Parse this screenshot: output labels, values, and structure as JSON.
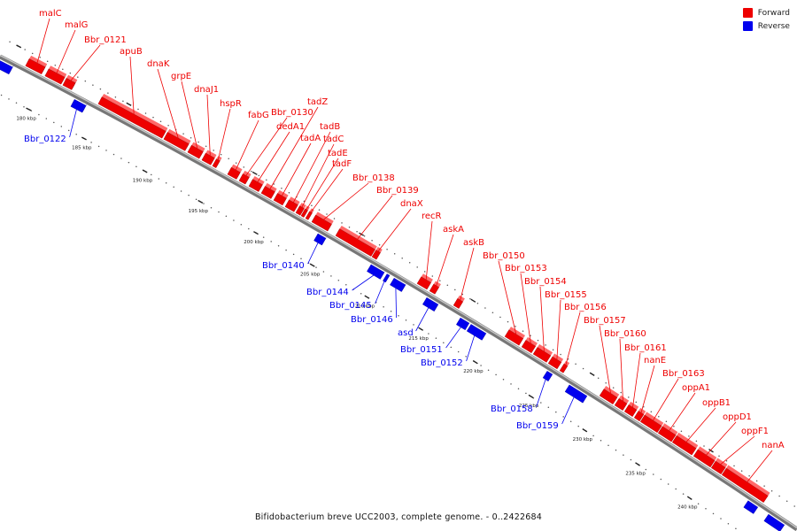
{
  "colors": {
    "forward": "#ee0000",
    "reverse": "#0000ee",
    "backbone": "#888888"
  },
  "legend": [
    {
      "label": "Forward",
      "color": "#ee0000"
    },
    {
      "label": "Reverse",
      "color": "#0000ee"
    }
  ],
  "footer": "Bifidobacterium breve UCC2003, complete genome. - 0..2422684",
  "scale": {
    "ticks": [
      "180 kbp",
      "185 kbp",
      "190 kbp",
      "195 kbp",
      "200 kbp",
      "205 kbp",
      "210 kbp",
      "215 kbp",
      "220 kbp",
      "225 kbp",
      "230 kbp",
      "235 kbp",
      "240 kbp"
    ]
  },
  "genes": [
    {
      "name": "malC",
      "strand": "forward"
    },
    {
      "name": "malG",
      "strand": "forward"
    },
    {
      "name": "Bbr_0121",
      "strand": "forward"
    },
    {
      "name": "apuB",
      "strand": "forward"
    },
    {
      "name": "dnaK",
      "strand": "forward"
    },
    {
      "name": "grpE",
      "strand": "forward"
    },
    {
      "name": "dnaJ1",
      "strand": "forward"
    },
    {
      "name": "hspR",
      "strand": "forward"
    },
    {
      "name": "fabG",
      "strand": "forward"
    },
    {
      "name": "Bbr_0130",
      "strand": "forward"
    },
    {
      "name": "dedA1",
      "strand": "forward"
    },
    {
      "name": "tadZ",
      "strand": "forward"
    },
    {
      "name": "tadA",
      "strand": "forward"
    },
    {
      "name": "tadB",
      "strand": "forward"
    },
    {
      "name": "tadC",
      "strand": "forward"
    },
    {
      "name": "tadE",
      "strand": "forward"
    },
    {
      "name": "tadF",
      "strand": "forward"
    },
    {
      "name": "Bbr_0138",
      "strand": "forward"
    },
    {
      "name": "Bbr_0139",
      "strand": "forward"
    },
    {
      "name": "dnaX",
      "strand": "forward"
    },
    {
      "name": "recR",
      "strand": "forward"
    },
    {
      "name": "askA",
      "strand": "forward"
    },
    {
      "name": "askB",
      "strand": "forward"
    },
    {
      "name": "Bbr_0150",
      "strand": "forward"
    },
    {
      "name": "Bbr_0153",
      "strand": "forward"
    },
    {
      "name": "Bbr_0154",
      "strand": "forward"
    },
    {
      "name": "Bbr_0155",
      "strand": "forward"
    },
    {
      "name": "Bbr_0156",
      "strand": "forward"
    },
    {
      "name": "Bbr_0157",
      "strand": "forward"
    },
    {
      "name": "Bbr_0160",
      "strand": "forward"
    },
    {
      "name": "Bbr_0161",
      "strand": "forward"
    },
    {
      "name": "nanE",
      "strand": "forward"
    },
    {
      "name": "Bbr_0163",
      "strand": "forward"
    },
    {
      "name": "oppA1",
      "strand": "forward"
    },
    {
      "name": "oppB1",
      "strand": "forward"
    },
    {
      "name": "oppD1",
      "strand": "forward"
    },
    {
      "name": "oppF1",
      "strand": "forward"
    },
    {
      "name": "nanA",
      "strand": "forward"
    },
    {
      "name": "Bbr_0122",
      "strand": "reverse"
    },
    {
      "name": "Bbr_0140",
      "strand": "reverse"
    },
    {
      "name": "Bbr_0144",
      "strand": "reverse"
    },
    {
      "name": "Bbr_0145",
      "strand": "reverse"
    },
    {
      "name": "Bbr_0146",
      "strand": "reverse"
    },
    {
      "name": "asd",
      "strand": "reverse"
    },
    {
      "name": "Bbr_0151",
      "strand": "reverse"
    },
    {
      "name": "Bbr_0152",
      "strand": "reverse"
    },
    {
      "name": "Bbr_0158",
      "strand": "reverse"
    },
    {
      "name": "Bbr_0159",
      "strand": "reverse"
    }
  ]
}
